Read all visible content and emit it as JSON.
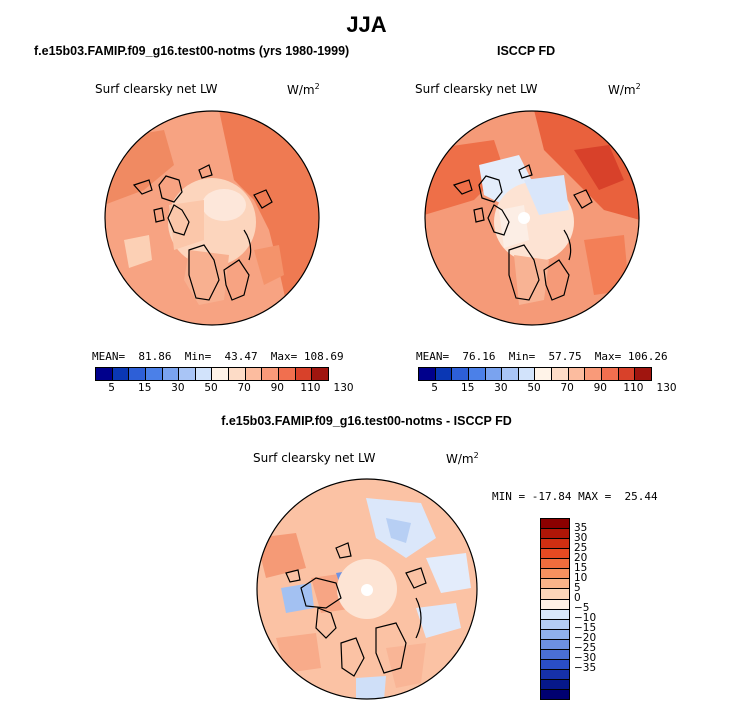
{
  "figure": {
    "title": "JJA"
  },
  "panels": [
    {
      "title": "f.e15b03.FAMIP.f09_g16.test00-notms (yrs 1980-1999)",
      "variable": "Surf clearsky net LW",
      "units": "W/m",
      "units_exp": "2",
      "stats": "MEAN=  81.86  Min=  43.47  Max= 108.69",
      "colorbar": {
        "colors": [
          "#00008c",
          "#0a37b4",
          "#2d5fd7",
          "#4b80e8",
          "#7aa3ef",
          "#a9c5f6",
          "#d2e3fb",
          "#fff3e8",
          "#fddcc7",
          "#fcbc9f",
          "#f99a79",
          "#f16f4f",
          "#d8412a",
          "#a0150f"
        ],
        "labels": [
          "5",
          "15",
          "30",
          "50",
          "70",
          "90",
          "110",
          "130"
        ]
      }
    },
    {
      "title": "ISCCP FD",
      "variable": "Surf clearsky net LW",
      "units": "W/m",
      "units_exp": "2",
      "stats": "MEAN=  76.16  Min=  57.75  Max= 106.26",
      "colorbar": {
        "colors": [
          "#00008c",
          "#0a37b4",
          "#2d5fd7",
          "#4b80e8",
          "#7aa3ef",
          "#a9c5f6",
          "#d2e3fb",
          "#fff3e8",
          "#fddcc7",
          "#fcbc9f",
          "#f99a79",
          "#f16f4f",
          "#d8412a",
          "#a0150f"
        ],
        "labels": [
          "5",
          "15",
          "30",
          "50",
          "70",
          "90",
          "110",
          "130"
        ]
      }
    },
    {
      "title": "f.e15b03.FAMIP.f09_g16.test00-notms - ISCCP FD",
      "variable": "Surf clearsky net LW",
      "units": "W/m",
      "units_exp": "2",
      "stats": "MIN = -17.84 MAX =  25.44",
      "colorbar": {
        "colors": [
          "#8b0000",
          "#b01607",
          "#cf2f12",
          "#e64a22",
          "#f16d3d",
          "#f7915f",
          "#fab489",
          "#fdd6b8",
          "#fff0e5",
          "#d9e8fb",
          "#b3cdf4",
          "#8fb0ec",
          "#6d90e2",
          "#4a6fd5",
          "#2a4ec5",
          "#1631a8",
          "#06188a",
          "#000070"
        ],
        "labels": [
          "35",
          "30",
          "25",
          "20",
          "15",
          "10",
          "5",
          "0",
          "−5",
          "−10",
          "−15",
          "−20",
          "−25",
          "−30",
          "−35"
        ]
      }
    }
  ]
}
